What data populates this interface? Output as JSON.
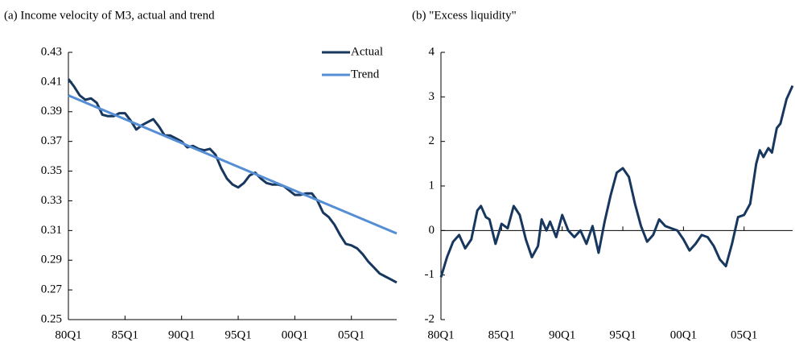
{
  "chart_data": [
    {
      "type": "line",
      "title": "(a) Income velocity of M3, actual and trend",
      "x": [
        1980,
        1980.5,
        1981,
        1981.5,
        1982,
        1982.5,
        1983,
        1983.5,
        1984,
        1984.5,
        1985,
        1985.5,
        1986,
        1986.5,
        1987,
        1987.5,
        1988,
        1988.5,
        1989,
        1989.5,
        1990,
        1990.5,
        1991,
        1991.5,
        1992,
        1992.5,
        1993,
        1993.5,
        1994,
        1994.5,
        1995,
        1995.5,
        1996,
        1996.5,
        1997,
        1997.5,
        1998,
        1998.5,
        1999,
        1999.5,
        2000,
        2000.5,
        2001,
        2001.5,
        2002,
        2002.5,
        2003,
        2003.5,
        2004,
        2004.5,
        2005,
        2005.5,
        2006,
        2006.5,
        2007,
        2007.5,
        2008,
        2008.5,
        2009
      ],
      "series": [
        {
          "name": "Actual",
          "color": "#17375e",
          "values": [
            0.412,
            0.407,
            0.401,
            0.398,
            0.399,
            0.396,
            0.388,
            0.387,
            0.387,
            0.389,
            0.389,
            0.384,
            0.378,
            0.381,
            0.383,
            0.385,
            0.38,
            0.374,
            0.374,
            0.372,
            0.37,
            0.366,
            0.367,
            0.365,
            0.364,
            0.365,
            0.361,
            0.352,
            0.345,
            0.341,
            0.339,
            0.342,
            0.347,
            0.349,
            0.345,
            0.342,
            0.341,
            0.341,
            0.34,
            0.337,
            0.334,
            0.334,
            0.335,
            0.335,
            0.33,
            0.322,
            0.319,
            0.314,
            0.307,
            0.301,
            0.3,
            0.298,
            0.294,
            0.289,
            0.285,
            0.281,
            0.279,
            0.277,
            0.275
          ]
        },
        {
          "name": "Trend",
          "color": "#558ed5",
          "x": [
            1980,
            2009
          ],
          "values": [
            0.401,
            0.308
          ]
        }
      ],
      "xlim": [
        1980,
        2009
      ],
      "ylim": [
        0.25,
        0.43
      ],
      "xticks": [
        {
          "value": 1980,
          "label": "80Q1"
        },
        {
          "value": 1985,
          "label": "85Q1"
        },
        {
          "value": 1990,
          "label": "90Q1"
        },
        {
          "value": 1995,
          "label": "95Q1"
        },
        {
          "value": 2000,
          "label": "00Q1"
        },
        {
          "value": 2005,
          "label": "05Q1"
        }
      ],
      "yticks": [
        0.25,
        0.27,
        0.29,
        0.31,
        0.33,
        0.35,
        0.37,
        0.39,
        0.41,
        0.43
      ],
      "legend": "upper right"
    },
    {
      "type": "line",
      "title": "(b) \"Excess liquidity\"",
      "x": [
        1980,
        1980.5,
        1981,
        1981.5,
        1982,
        1982.5,
        1983,
        1983.3,
        1983.7,
        1984,
        1984.5,
        1985,
        1985.5,
        1986,
        1986.5,
        1987,
        1987.5,
        1988,
        1988.3,
        1988.7,
        1989,
        1989.5,
        1990,
        1990.5,
        1991,
        1991.5,
        1992,
        1992.5,
        1993,
        1993.5,
        1994,
        1994.5,
        1995,
        1995.5,
        1996,
        1996.5,
        1997,
        1997.5,
        1998,
        1998.5,
        1999,
        1999.5,
        2000,
        2000.5,
        2001,
        2001.5,
        2002,
        2002.5,
        2003,
        2003.5,
        2004,
        2004.5,
        2005,
        2005.5,
        2006,
        2006.3,
        2006.6,
        2007,
        2007.3,
        2007.7,
        2008,
        2008.5,
        2009
      ],
      "series": [
        {
          "name": "Excess liquidity",
          "color": "#17375e",
          "values": [
            -1.05,
            -0.6,
            -0.25,
            -0.1,
            -0.4,
            -0.2,
            0.45,
            0.55,
            0.3,
            0.25,
            -0.3,
            0.15,
            0.05,
            0.55,
            0.35,
            -0.2,
            -0.6,
            -0.35,
            0.25,
            0,
            0.2,
            -0.15,
            0.35,
            0,
            -0.15,
            0,
            -0.3,
            0.1,
            -0.5,
            0.2,
            0.8,
            1.3,
            1.4,
            1.2,
            0.6,
            0.1,
            -0.25,
            -0.1,
            0.25,
            0.1,
            0.05,
            0,
            -0.2,
            -0.45,
            -0.3,
            -0.1,
            -0.15,
            -0.35,
            -0.65,
            -0.8,
            -0.3,
            0.3,
            0.35,
            0.6,
            1.5,
            1.8,
            1.65,
            1.85,
            1.75,
            2.3,
            2.4,
            2.95,
            3.25
          ]
        }
      ],
      "xlim": [
        1980,
        2009
      ],
      "ylim": [
        -2,
        4
      ],
      "xticks": [
        {
          "value": 1980,
          "label": "80Q1"
        },
        {
          "value": 1985,
          "label": "85Q1"
        },
        {
          "value": 1990,
          "label": "90Q1"
        },
        {
          "value": 1995,
          "label": "95Q1"
        },
        {
          "value": 2000,
          "label": "00Q1"
        },
        {
          "value": 2005,
          "label": "05Q1"
        }
      ],
      "yticks": [
        -2,
        -1,
        0,
        1,
        2,
        3,
        4
      ],
      "x_axis_crosses": 0
    }
  ]
}
